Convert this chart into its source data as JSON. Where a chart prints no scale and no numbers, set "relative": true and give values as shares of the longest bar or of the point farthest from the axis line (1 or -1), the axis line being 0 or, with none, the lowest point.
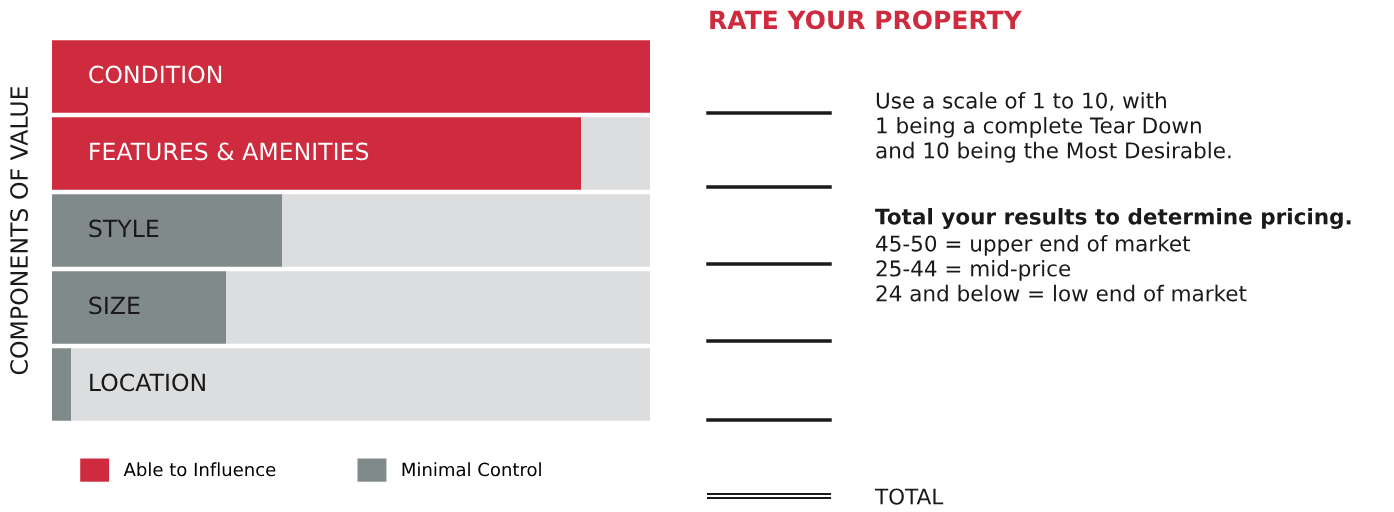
{
  "chart_data": [
    {
      "type": "bar",
      "orientation": "horizontal",
      "stacked": true,
      "relative": true,
      "ylabel": "COMPONENTS OF VALUE",
      "categories": [
        "CONDITION",
        "FEATURES & AMENITIES",
        "STYLE",
        "SIZE",
        "LOCATION"
      ],
      "series": [
        {
          "name": "Able to Influence",
          "color": "#cf2b3e",
          "values": [
            1,
            0.885,
            null,
            null,
            null
          ]
        },
        {
          "name": "Minimal Control",
          "color": "#818a8a",
          "values": [
            null,
            null,
            0.385,
            0.291,
            0.032
          ]
        },
        {
          "color": "#dcdddf",
          "values": [
            0,
            0.115,
            0.615,
            0.709,
            0.968
          ]
        }
      ],
      "legend": "bottom"
    },
    {
      "type": "other",
      "title": "RATE YOUR PROPERTY",
      "annotations": [
        "Use a scale of 1 to 10, with\n1 being a complete Tear Down\nand 10 being the Most Desirable.",
        "Total your results to determine pricing.",
        "45-50 = upper end of market\n25-44 = mid-price\n24 and below = low end of market",
        "TOTAL"
      ]
    }
  ]
}
